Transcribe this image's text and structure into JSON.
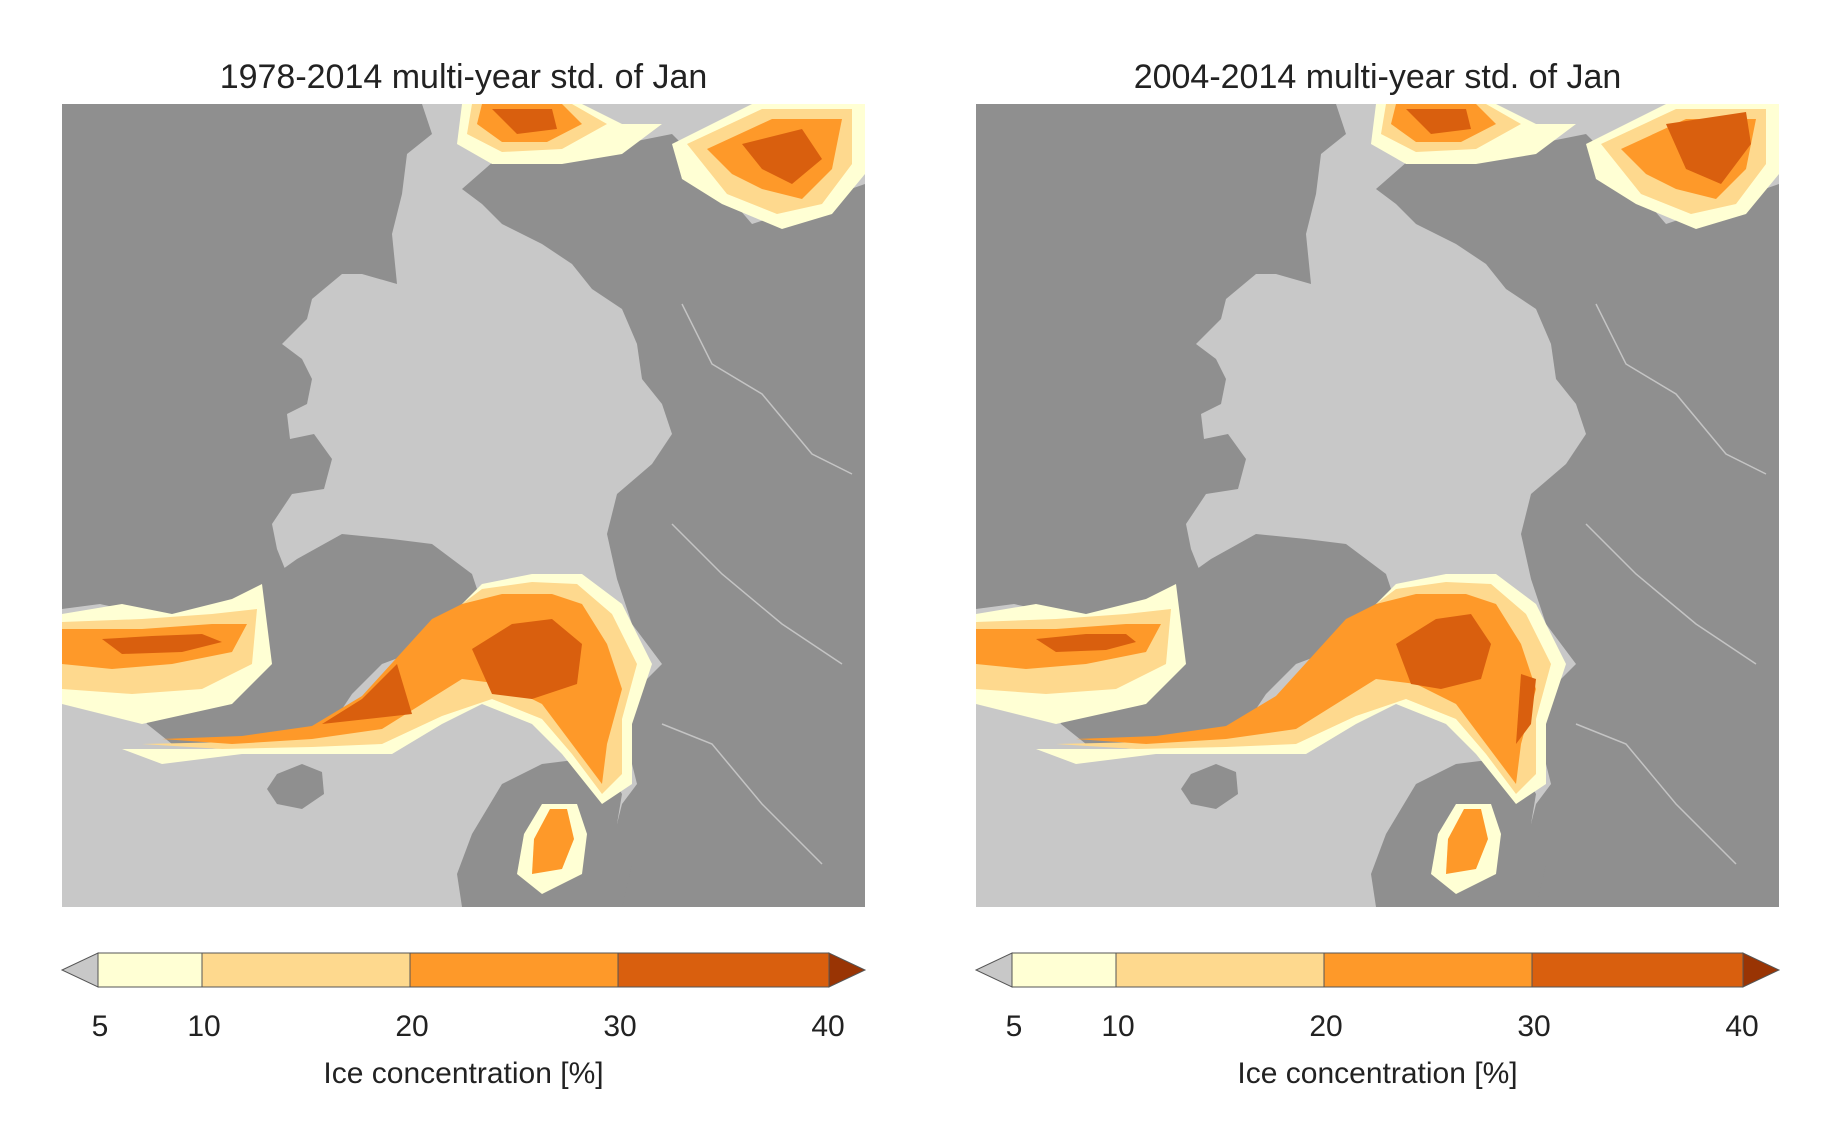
{
  "colors": {
    "ocean": "#c8c8c8",
    "land": "#8f8f8f",
    "rivers": "#c4c4c4",
    "below_min": "#c8c8c8",
    "bins": [
      "#ffffd4",
      "#fed98e",
      "#fe9929",
      "#d95f0e"
    ],
    "above_max": "#993404"
  },
  "colorbar": {
    "label": "Ice concentration [%]",
    "ticks": [
      "5",
      "10",
      "20",
      "30",
      "40"
    ],
    "tick_values": [
      5,
      10,
      20,
      30,
      40
    ],
    "extend": "both"
  },
  "panels": [
    {
      "title": "1978-2014 multi-year std. of Jan"
    },
    {
      "title": "2004-2014 multi-year std. of Jan"
    }
  ]
}
